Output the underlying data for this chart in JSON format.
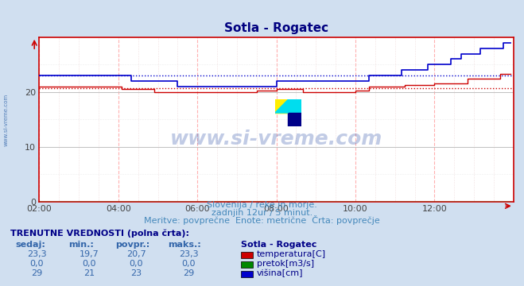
{
  "title": "Sotla - Rogatec",
  "title_color": "#000080",
  "bg_color": "#d0dff0",
  "plot_bg_color": "#ffffff",
  "grid_color_h": "#c0c0c0",
  "grid_color_v": "#ffb0b0",
  "xlabel_times": [
    "02:00",
    "04:00",
    "06:00",
    "08:00",
    "10:00",
    "12:00"
  ],
  "xlim": [
    0,
    144
  ],
  "ylim": [
    0,
    30
  ],
  "yticks": [
    0,
    10,
    20
  ],
  "temp_avg": 20.7,
  "height_avg": 23.0,
  "temp_color": "#cc0000",
  "height_color": "#0000cc",
  "flow_color": "#008800",
  "subtitle1": "Slovenija / reke in morje.",
  "subtitle2": "zadnjih 12ur / 5 minut.",
  "subtitle3": "Meritve: povprečne  Enote: metrične  Črta: povprečje",
  "subtitle_color": "#4488bb",
  "table_title": "TRENUTNE VREDNOSTI (polna črta):",
  "col_headers": [
    "sedaj:",
    "min.:",
    "povpr.:",
    "maks.:"
  ],
  "row1": [
    "23,3",
    "19,7",
    "20,7",
    "23,3"
  ],
  "row2": [
    "0,0",
    "0,0",
    "0,0",
    "0,0"
  ],
  "row3": [
    "29",
    "21",
    "23",
    "29"
  ],
  "station_label": "Sotla - Rogatec",
  "legend_labels": [
    "temperatura[C]",
    "pretok[m3/s]",
    "višina[cm]"
  ],
  "legend_colors": [
    "#cc0000",
    "#008800",
    "#0000cc"
  ],
  "watermark_text": "www.si-vreme.com",
  "watermark_color": "#3355aa",
  "side_text": "www.si-vreme.com"
}
